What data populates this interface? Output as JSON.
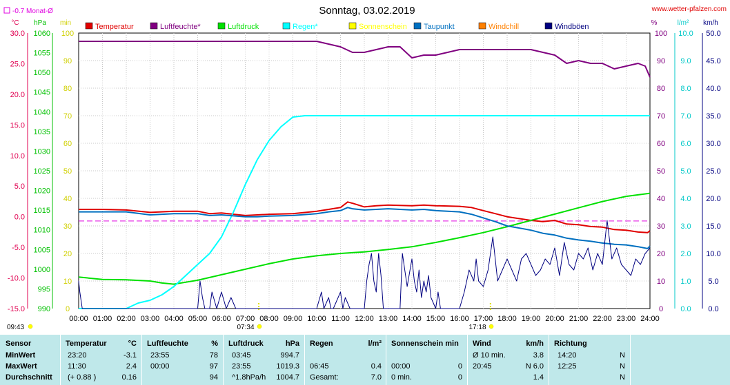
{
  "title": "Sonntag, 03.02.2019",
  "source": "www.wetter-pfalzen.com",
  "monthly_avg_label": "-0.7 Monat-Ø",
  "unit_labels": {
    "temp": "°C",
    "press": "hPa",
    "min": "min",
    "pct": "%",
    "rain": "l/m²",
    "wind": "km/h"
  },
  "sunrise": "07:34",
  "sunset": "17:18",
  "day_start": "09:43",
  "legend": [
    {
      "name": "Temperatur",
      "color": "#e00000"
    },
    {
      "name": "Luftfeuchte*",
      "color": "#800080"
    },
    {
      "name": "Luftdruck",
      "color": "#00e000"
    },
    {
      "name": "Regen*",
      "color": "#00ffff"
    },
    {
      "name": "Sonnenschein",
      "color": "#ffff00"
    },
    {
      "name": "Taupunkt",
      "color": "#0070c0"
    },
    {
      "name": "Windchill",
      "color": "#ff8000"
    },
    {
      "name": "Windböen",
      "color": "#000080"
    }
  ],
  "chart_data": {
    "type": "line",
    "title": "Sonntag, 03.02.2019",
    "x_ticks": [
      "00:00",
      "01:00",
      "02:00",
      "03:00",
      "04:00",
      "05:00",
      "06:00",
      "07:00",
      "08:00",
      "09:00",
      "10:00",
      "11:00",
      "12:00",
      "13:00",
      "14:00",
      "15:00",
      "16:00",
      "17:00",
      "18:00",
      "19:00",
      "20:00",
      "21:00",
      "22:00",
      "23:00",
      "24:00"
    ],
    "axes": {
      "temp": {
        "label": "°C",
        "range": [
          -15,
          30
        ],
        "ticks": [
          "30.0",
          "25.0",
          "20.0",
          "15.0",
          "10.0",
          "5.0",
          "0.0",
          "-5.0",
          "-10.0",
          "-15.0"
        ],
        "color": "#e00050"
      },
      "press": {
        "label": "hPa",
        "range": [
          990,
          1060
        ],
        "ticks": [
          "1060",
          "1055",
          "1050",
          "1045",
          "1040",
          "1035",
          "1030",
          "1025",
          "1020",
          "1015",
          "1010",
          "1005",
          "1000",
          "995",
          "990"
        ],
        "color": "#00c000"
      },
      "min": {
        "label": "min",
        "range": [
          0,
          100
        ],
        "ticks": [
          "100",
          "90",
          "80",
          "70",
          "60",
          "50",
          "40",
          "30",
          "20",
          "10",
          "0"
        ],
        "color": "#d0d000"
      },
      "pct": {
        "label": "%",
        "range": [
          0,
          100
        ],
        "ticks": [
          "100",
          "90",
          "80",
          "70",
          "60",
          "50",
          "40",
          "30",
          "20",
          "10",
          "0"
        ],
        "color": "#800080"
      },
      "rain": {
        "label": "l/m²",
        "range": [
          0,
          10
        ],
        "ticks": [
          "10.0",
          "9.0",
          "8.0",
          "7.0",
          "6.0",
          "5.0",
          "4.0",
          "3.0",
          "2.0",
          "1.0",
          "0.0"
        ],
        "color": "#00c8c8"
      },
      "wind": {
        "label": "km/h",
        "range": [
          0,
          50
        ],
        "ticks": [
          "50.0",
          "45.0",
          "40.0",
          "35.0",
          "30.0",
          "25.0",
          "20.0",
          "15.0",
          "10.0",
          "5.0",
          "0.0"
        ],
        "color": "#000080"
      }
    },
    "monthly_avg_temp": -0.7,
    "series": [
      {
        "name": "Temperatur",
        "axis": "temp",
        "color": "#e00000",
        "x": [
          0,
          1,
          2,
          2.8,
          3,
          4,
          5,
          5.5,
          6,
          7,
          7.5,
          8,
          9,
          10,
          10.5,
          11,
          11.3,
          11.5,
          12,
          12.5,
          13,
          14,
          14.5,
          15,
          16,
          16.5,
          17,
          17.5,
          18,
          19,
          19.5,
          20,
          20.5,
          21,
          21.5,
          22,
          22.5,
          23,
          23.5,
          23.9,
          24
        ],
        "y": [
          1.2,
          1.2,
          1.1,
          0.8,
          0.7,
          0.9,
          0.9,
          0.5,
          0.6,
          0.2,
          0.3,
          0.4,
          0.5,
          0.9,
          1.2,
          1.5,
          2.4,
          2.2,
          1.6,
          1.8,
          1.9,
          1.8,
          1.9,
          1.8,
          1.7,
          1.5,
          1.0,
          0.5,
          0.0,
          -0.6,
          -0.8,
          -0.6,
          -1.2,
          -1.3,
          -1.6,
          -1.7,
          -2.1,
          -2.2,
          -2.5,
          -2.6,
          -2.3
        ]
      },
      {
        "name": "Luftfeuchte*",
        "axis": "pct",
        "color": "#800080",
        "x": [
          0,
          1,
          2,
          3,
          4,
          5,
          6,
          7,
          8,
          9,
          10,
          10.5,
          11,
          11.5,
          12,
          12.5,
          13,
          13.5,
          14,
          14.5,
          15,
          15.5,
          16,
          16.5,
          17,
          17.5,
          18,
          18.5,
          19,
          19.5,
          20,
          20.5,
          21,
          21.5,
          22,
          22.5,
          23,
          23.5,
          23.8,
          24
        ],
        "y": [
          97,
          97,
          97,
          97,
          97,
          97,
          97,
          97,
          97,
          97,
          97,
          96,
          95,
          93,
          93,
          94,
          95,
          95,
          91,
          92,
          92,
          93,
          94,
          94,
          94,
          94,
          94,
          94,
          94,
          93,
          92,
          89,
          90,
          89,
          89,
          87,
          88,
          89,
          88,
          84
        ]
      },
      {
        "name": "Luftdruck",
        "axis": "press",
        "color": "#00e000",
        "x": [
          0,
          1,
          2,
          3,
          3.5,
          4,
          5,
          6,
          7,
          8,
          9,
          10,
          11,
          12,
          13,
          14,
          15,
          16,
          17,
          18,
          19,
          20,
          21,
          22,
          23,
          24
        ],
        "y": [
          998.0,
          997.4,
          997.3,
          997.0,
          996.5,
          996.2,
          997.2,
          998.6,
          1000.0,
          1001.4,
          1002.6,
          1003.4,
          1004.0,
          1004.4,
          1005.0,
          1005.7,
          1006.8,
          1008.0,
          1009.3,
          1010.8,
          1012.4,
          1014.0,
          1015.6,
          1017.2,
          1018.5,
          1019.3
        ]
      },
      {
        "name": "Regen*",
        "axis": "rain",
        "color": "#00ffff",
        "x": [
          0,
          1,
          2,
          2.5,
          3,
          3.5,
          4,
          4.5,
          5,
          5.5,
          6,
          6.5,
          7,
          7.5,
          8,
          8.5,
          9,
          9.5,
          10,
          24
        ],
        "y": [
          0,
          0,
          0,
          0.2,
          0.3,
          0.5,
          0.8,
          1.2,
          1.6,
          2.0,
          2.6,
          3.5,
          4.5,
          5.4,
          6.1,
          6.6,
          6.95,
          7.0,
          7.0,
          7.0
        ]
      },
      {
        "name": "Taupunkt",
        "axis": "temp",
        "color": "#0070c0",
        "x": [
          0,
          1,
          2,
          2.8,
          3,
          4,
          5,
          5.5,
          6,
          7,
          7.5,
          8,
          9,
          10,
          10.5,
          11,
          11.3,
          11.5,
          12,
          12.5,
          13,
          14,
          14.5,
          15,
          16,
          16.5,
          17,
          17.5,
          18,
          19,
          19.5,
          20,
          20.5,
          21,
          21.5,
          22,
          22.5,
          23,
          23.5,
          23.9,
          24
        ],
        "y": [
          0.8,
          0.8,
          0.8,
          0.4,
          0.3,
          0.5,
          0.5,
          0.2,
          0.3,
          0.0,
          0.0,
          0.1,
          0.2,
          0.5,
          0.8,
          1.0,
          1.5,
          1.3,
          1.1,
          1.2,
          1.3,
          1.1,
          1.2,
          1.0,
          0.8,
          0.4,
          -0.2,
          -0.8,
          -1.5,
          -2.2,
          -2.7,
          -3.0,
          -3.5,
          -3.8,
          -4.0,
          -4.3,
          -4.5,
          -4.6,
          -4.9,
          -5.2,
          -4.8
        ]
      },
      {
        "name": "Windböen",
        "axis": "wind",
        "color": "#000080",
        "x": [
          0,
          0.05,
          0.15,
          0.3,
          5,
          5.1,
          5.2,
          5.3,
          5.5,
          5.6,
          5.8,
          6.0,
          6.2,
          6.4,
          6.6,
          10,
          10.2,
          10.3,
          10.5,
          10.6,
          10.7,
          11,
          11.1,
          11.2,
          11.4,
          11.5,
          12,
          12.1,
          12.2,
          12.3,
          12.4,
          12.5,
          12.6,
          12.7,
          12.8,
          13.5,
          13.6,
          13.8,
          14.0,
          14.1,
          14.2,
          14.3,
          14.4,
          14.5,
          14.6,
          14.7,
          14.8,
          15.0,
          15.1,
          15.2,
          16.0,
          16.2,
          16.3,
          16.4,
          16.5,
          16.6,
          16.7,
          16.8,
          17.0,
          17.2,
          17.4,
          17.6,
          17.8,
          18.0,
          18.2,
          18.4,
          18.6,
          18.8,
          19.0,
          19.2,
          19.4,
          19.6,
          19.8,
          20.0,
          20.2,
          20.4,
          20.6,
          20.8,
          21.0,
          21.2,
          21.4,
          21.6,
          21.8,
          22.0,
          22.2,
          22.4,
          22.6,
          22.8,
          23.0,
          23.2,
          23.4,
          23.6,
          23.8,
          24.0
        ],
        "y": [
          5,
          3,
          0,
          0,
          0,
          5,
          2,
          0,
          0,
          3,
          0,
          3,
          0,
          2,
          0,
          0,
          3,
          0,
          2,
          0,
          0,
          3,
          0,
          2,
          0,
          0,
          0,
          5,
          8,
          10,
          5,
          3,
          10,
          6,
          0,
          0,
          10,
          4,
          9,
          5,
          3,
          7,
          2,
          5,
          3,
          6,
          2,
          0,
          3,
          0,
          0,
          3,
          5,
          7,
          6,
          5,
          9,
          5,
          4,
          7,
          13,
          5,
          7,
          9,
          7,
          5,
          9,
          10,
          8,
          6,
          7,
          9,
          8,
          11,
          6,
          12,
          8,
          7,
          10,
          9,
          11,
          7,
          10,
          8,
          16,
          9,
          11,
          8,
          7,
          6,
          9,
          8,
          10,
          11
        ]
      }
    ]
  },
  "stats": {
    "header": {
      "sensor": "Sensor",
      "temp": "Temperatur",
      "temp_u": "°C",
      "hum": "Luftfeuchte",
      "hum_u": "%",
      "press": "Luftdruck",
      "press_u": "hPa",
      "rain": "Regen",
      "rain_u": "l/m²",
      "sun": "Sonnenschein min",
      "wind": "Wind",
      "wind_u": "km/h",
      "dir": "Richtung"
    },
    "rows": [
      {
        "label": "MinWert",
        "temp_t": "23:20",
        "temp_v": "-3.1",
        "hum_t": "23:55",
        "hum_v": "78",
        "press_t": "03:45",
        "press_v": "994.7",
        "rain_t": "",
        "rain_v": "",
        "sun_t": "",
        "sun_v": "",
        "wind_t": "Ø 10 min.",
        "wind_v": "3.8",
        "dir_t": "14:20",
        "dir_v": "N"
      },
      {
        "label": "MaxWert",
        "temp_t": "11:30",
        "temp_v": "2.4",
        "hum_t": "00:00",
        "hum_v": "97",
        "press_t": "23:55",
        "press_v": "1019.3",
        "rain_t": "06:45",
        "rain_v": "0.4",
        "sun_t": "00:00",
        "sun_v": "0",
        "wind_t": "20:45",
        "wind_v": "N 6.0",
        "dir_t": "12:25",
        "dir_v": "N"
      },
      {
        "label": "Durchschnitt",
        "temp_t": "(+ 0.88 )",
        "temp_v": "0.16",
        "hum_t": "",
        "hum_v": "94",
        "press_t": "^1.8hPa/h",
        "press_v": "1004.7",
        "rain_t": "Gesamt:",
        "rain_v": "7.0",
        "sun_t": "0 min.",
        "sun_v": "0",
        "wind_t": "",
        "wind_v": "1.4",
        "dir_t": "",
        "dir_v": "N"
      }
    ]
  }
}
